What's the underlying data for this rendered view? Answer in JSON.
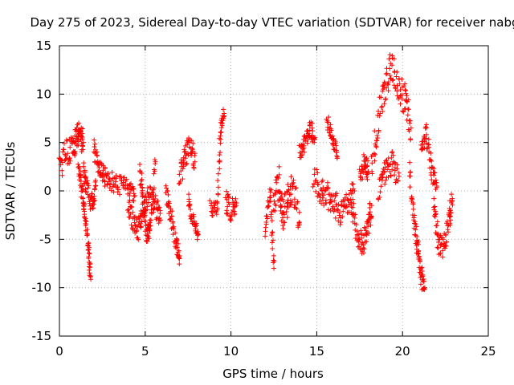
{
  "chart_data": {
    "type": "scatter",
    "title": "Day 275 of 2023, Sidereal Day-to-day VTEC variation (SDTVAR) for receiver nabg",
    "xlabel": "GPS time / hours",
    "ylabel": "SDTVAR / TECUs",
    "xlim": [
      0,
      25
    ],
    "ylim": [
      -15,
      15
    ],
    "xticks": [
      "0",
      "5",
      "10",
      "15",
      "20",
      "25"
    ],
    "yticks": [
      "-15",
      "-10",
      "-5",
      "0",
      "5",
      "10",
      "15"
    ],
    "grid": true,
    "marker": "+",
    "color": "#ff0000",
    "series": [
      {
        "name": "SDTVAR",
        "segments": [
          {
            "x": [
              0.0,
              0.4,
              0.8,
              1.0,
              1.2,
              1.4
            ],
            "y": [
              2.5,
              3.8,
              4.5,
              5.5,
              6.0,
              5.0
            ],
            "spread": 1.4
          },
          {
            "x": [
              1.1,
              1.3,
              1.5,
              1.7,
              1.8
            ],
            "y": [
              3.0,
              0.0,
              -2.5,
              -6.0,
              -8.8
            ],
            "spread": 0.7
          },
          {
            "x": [
              1.4,
              1.6,
              1.9,
              2.1
            ],
            "y": [
              2.0,
              0.5,
              -1.5,
              0.5
            ],
            "spread": 1.0
          },
          {
            "x": [
              2.0,
              2.3,
              2.6,
              3.0,
              3.5,
              4.0,
              4.4
            ],
            "y": [
              4.5,
              2.5,
              1.5,
              1.0,
              0.5,
              0.5,
              -0.5
            ],
            "spread": 1.0
          },
          {
            "x": [
              4.0,
              4.3,
              4.6,
              4.9,
              5.2,
              5.6,
              5.9
            ],
            "y": [
              -1.0,
              -3.5,
              -4.0,
              -2.0,
              -0.5,
              -1.5,
              -3.0
            ],
            "spread": 1.2
          },
          {
            "x": [
              4.7,
              4.9,
              5.1,
              5.3,
              5.6
            ],
            "y": [
              2.0,
              -1.5,
              -4.5,
              -3.5,
              3.0
            ],
            "spread": 1.0
          },
          {
            "x": [
              6.2,
              6.5,
              6.8,
              7.0
            ],
            "y": [
              0.0,
              -2.5,
              -5.5,
              -7.0
            ],
            "spread": 1.0
          },
          {
            "x": [
              7.0,
              7.3,
              7.6,
              7.9
            ],
            "y": [
              1.0,
              3.5,
              5.0,
              3.0
            ],
            "spread": 1.2
          },
          {
            "x": [
              7.5,
              7.8,
              8.1
            ],
            "y": [
              -1.0,
              -3.0,
              -4.5
            ],
            "spread": 0.8
          },
          {
            "x": [
              8.8,
              9.2,
              9.4,
              9.6
            ],
            "y": [
              -1.8,
              -2.0,
              6.5,
              8.0
            ],
            "spread": 0.8
          },
          {
            "x": [
              9.7,
              10.0,
              10.3
            ],
            "y": [
              -1.0,
              -2.0,
              -1.5
            ],
            "spread": 1.2
          },
          {
            "x": [
              12.0,
              12.3,
              12.5
            ],
            "y": [
              -4.0,
              0.0,
              -8.0
            ],
            "spread": 0.8
          },
          {
            "x": [
              12.5,
              12.8,
              13.0,
              13.3,
              13.6,
              14.0
            ],
            "y": [
              -1.5,
              1.0,
              -2.5,
              -1.0,
              0.5,
              -3.5
            ],
            "spread": 1.6
          },
          {
            "x": [
              14.0,
              14.3,
              14.6,
              14.9
            ],
            "y": [
              4.0,
              5.0,
              6.5,
              5.5
            ],
            "spread": 0.9
          },
          {
            "x": [
              14.8,
              15.2,
              15.6,
              16.0,
              16.4,
              16.8,
              17.2
            ],
            "y": [
              1.5,
              0.0,
              -0.5,
              -1.0,
              -2.5,
              -1.5,
              0.0
            ],
            "spread": 1.4
          },
          {
            "x": [
              15.6,
              15.9,
              16.2
            ],
            "y": [
              7.5,
              5.5,
              3.5
            ],
            "spread": 0.8
          },
          {
            "x": [
              17.0,
              17.4,
              17.7,
              18.0,
              18.2
            ],
            "y": [
              -2.0,
              -4.5,
              -5.5,
              -3.5,
              -1.5
            ],
            "spread": 1.2
          },
          {
            "x": [
              17.5,
              17.8,
              18.0
            ],
            "y": [
              1.5,
              3.0,
              2.0
            ],
            "spread": 1.0
          },
          {
            "x": [
              18.2,
              18.6,
              19.0,
              19.4,
              19.8,
              20.2,
              20.5
            ],
            "y": [
              2.5,
              7.0,
              11.0,
              13.0,
              11.0,
              9.0,
              6.5
            ],
            "spread": 1.8
          },
          {
            "x": [
              18.6,
              19.0,
              19.4,
              19.8
            ],
            "y": [
              0.0,
              2.0,
              3.0,
              1.5
            ],
            "spread": 1.3
          },
          {
            "x": [
              20.4,
              20.7,
              20.9,
              21.1,
              21.3
            ],
            "y": [
              2.0,
              -3.5,
              -6.5,
              -9.0,
              -10.0
            ],
            "spread": 1.2
          },
          {
            "x": [
              21.1,
              21.4,
              21.7,
              22.0
            ],
            "y": [
              4.5,
              6.0,
              2.0,
              0.5
            ],
            "spread": 1.1
          },
          {
            "x": [
              21.8,
              22.1,
              22.4,
              22.7,
              22.9
            ],
            "y": [
              -1.0,
              -5.5,
              -6.0,
              -3.0,
              -1.0
            ],
            "spread": 1.1
          }
        ]
      }
    ]
  }
}
